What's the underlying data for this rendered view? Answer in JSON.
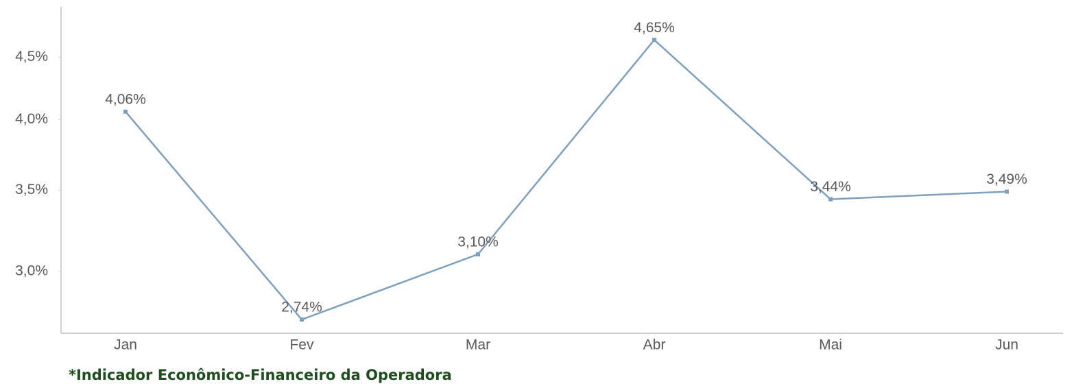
{
  "chart_data": {
    "type": "line",
    "categories": [
      "Jan",
      "Fev",
      "Mar",
      "Abr",
      "Mai",
      "Jun"
    ],
    "series": [
      {
        "color": "#7f9fbf",
        "values": [
          4.06,
          2.74,
          3.1,
          4.65,
          3.44,
          3.49
        ],
        "value_labels": [
          "4,06%",
          "2,74%",
          "3,10%",
          "4,65%",
          "3,44%",
          "3,49%"
        ]
      }
    ],
    "ylim": [
      2.67,
      4.95
    ],
    "log_scale": true,
    "grid": false,
    "yticks": [
      {
        "value": 3.0,
        "label": "3,0%"
      },
      {
        "value": 3.5,
        "label": "3,5%"
      },
      {
        "value": 4.0,
        "label": "4,0%"
      },
      {
        "value": 4.5,
        "label": "4,5%"
      }
    ],
    "footnote": "*Indicador Econômico-Financeiro da Operadora"
  }
}
